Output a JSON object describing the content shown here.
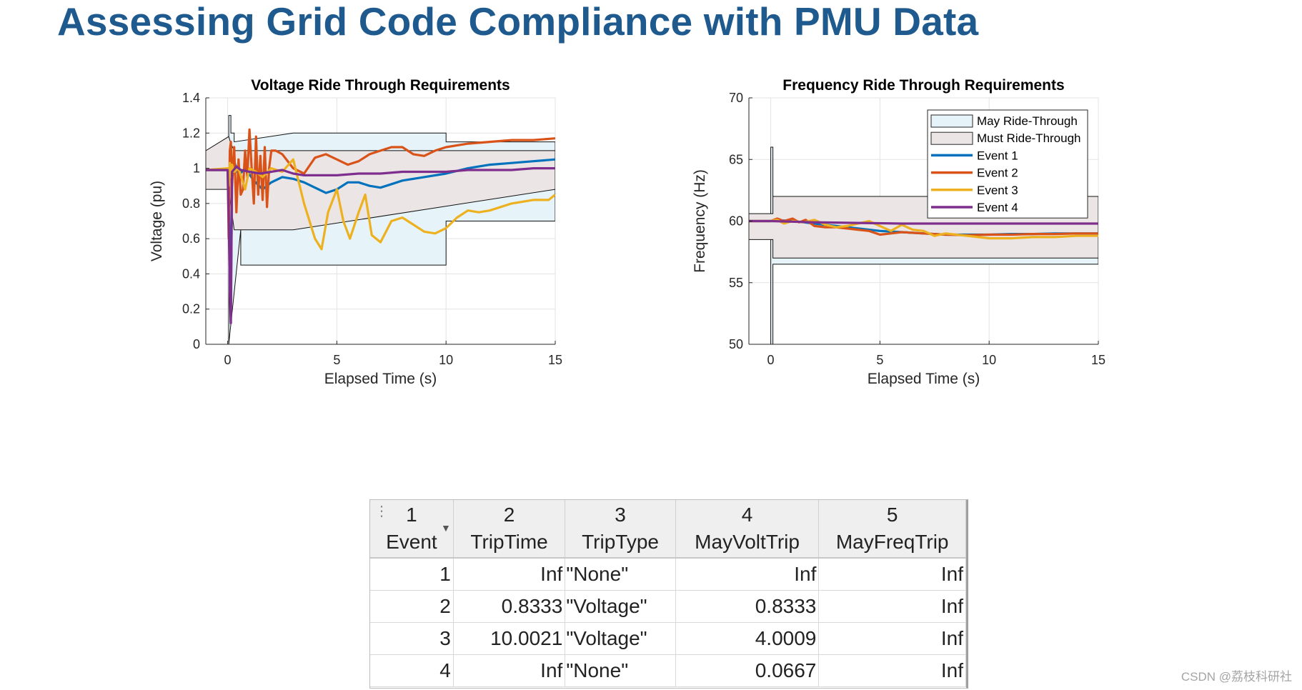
{
  "page": {
    "title": "Assessing Grid Code Compliance with PMU Data",
    "watermark": "CSDN @荔枝科研社"
  },
  "chart_data": [
    {
      "id": "voltage",
      "type": "line",
      "title": "Voltage Ride Through Requirements",
      "xlabel": "Elapsed Time (s)",
      "ylabel": "Voltage (pu)",
      "xlim": [
        -1,
        15
      ],
      "ylim": [
        0,
        1.4
      ],
      "xticks": [
        0,
        5,
        10,
        15
      ],
      "xtick_labels": [
        "0",
        "5",
        "10",
        "15"
      ],
      "yticks": [
        0,
        0.2,
        0.4,
        0.6,
        0.8,
        1,
        1.2,
        1.4
      ],
      "ytick_labels": [
        "0",
        "0.2",
        "0.4",
        "0.6",
        "0.8",
        "1",
        "1.2",
        "1.4"
      ],
      "grid": true,
      "regions": [
        {
          "name": "May Ride-Through",
          "color": "#e6f3f8",
          "x": [
            0.05,
            0.05,
            0.15,
            0.15,
            0.3,
            0.3,
            3,
            10,
            10,
            15,
            15,
            10,
            10,
            0.6,
            0.6,
            0.05
          ],
          "y": [
            0,
            1.3,
            1.3,
            1.2,
            1.2,
            1.15,
            1.2,
            1.2,
            1.15,
            1.15,
            0.7,
            0.7,
            0.45,
            0.45,
            0.65,
            0
          ]
        },
        {
          "name": "Must Ride-Through",
          "color": "#ece5e5",
          "x": [
            -1,
            -1,
            0.05,
            0.15,
            0.3,
            0.5,
            15,
            15,
            3,
            0.3,
            0.05
          ],
          "y": [
            0.88,
            1.1,
            1.18,
            1.14,
            1.1,
            1.1,
            1.1,
            0.88,
            0.65,
            0.65,
            0.88
          ]
        }
      ],
      "series": [
        {
          "name": "Event 1",
          "color": "#0072bd",
          "x": [
            -1,
            0,
            0.05,
            0.1,
            0.15,
            0.2,
            0.3,
            0.5,
            0.8,
            1.2,
            1.6,
            2,
            2.5,
            3,
            3.5,
            4,
            4.5,
            5,
            5.5,
            6,
            6.5,
            7,
            7.5,
            8,
            9,
            10,
            11,
            12,
            13,
            14,
            15
          ],
          "y": [
            0.99,
            0.99,
            0.85,
            0.5,
            0.25,
            0.95,
            1.04,
            0.96,
            1.0,
            0.93,
            0.88,
            0.92,
            0.95,
            0.94,
            0.92,
            0.89,
            0.86,
            0.88,
            0.92,
            0.92,
            0.9,
            0.89,
            0.91,
            0.93,
            0.95,
            0.97,
            1.0,
            1.02,
            1.03,
            1.04,
            1.05
          ]
        },
        {
          "name": "Event 2",
          "color": "#d95319",
          "x": [
            -1,
            0,
            0.05,
            0.1,
            0.15,
            0.2,
            0.3,
            0.4,
            0.5,
            0.6,
            0.7,
            0.8,
            0.9,
            1.0,
            1.1,
            1.2,
            1.3,
            1.4,
            1.5,
            1.6,
            1.7,
            1.8,
            1.9,
            2.0,
            2.2,
            2.5,
            3,
            3.5,
            4,
            4.5,
            5,
            5.5,
            6,
            6.5,
            7,
            7.5,
            8,
            8.5,
            9,
            9.5,
            10,
            11,
            12,
            13,
            14,
            15
          ],
          "y": [
            0.99,
            0.99,
            0.6,
            1.1,
            1.15,
            0.9,
            1.12,
            0.75,
            1.05,
            0.85,
            0.88,
            1.1,
            0.95,
            1.22,
            1.0,
            0.8,
            1.18,
            0.85,
            1.07,
            0.82,
            1.12,
            0.78,
            1.0,
            1.1,
            1.1,
            1.08,
            1.0,
            0.97,
            1.06,
            1.08,
            1.05,
            1.02,
            1.04,
            1.08,
            1.1,
            1.12,
            1.12,
            1.08,
            1.07,
            1.1,
            1.12,
            1.14,
            1.15,
            1.16,
            1.16,
            1.17
          ]
        },
        {
          "name": "Event 3",
          "color": "#edb120",
          "x": [
            -1,
            0,
            0.05,
            0.1,
            0.15,
            0.2,
            0.3,
            0.5,
            0.8,
            1.0,
            1.3,
            1.6,
            2,
            2.5,
            3,
            3.5,
            4,
            4.3,
            4.6,
            5,
            5.3,
            5.6,
            6,
            6.3,
            6.6,
            7,
            7.5,
            8,
            8.5,
            9,
            9.5,
            10,
            10.5,
            11,
            11.5,
            12,
            12.5,
            13,
            13.5,
            14,
            14.7,
            15
          ],
          "y": [
            0.99,
            1.0,
            0.9,
            1.03,
            0.95,
            1.02,
            0.98,
            1.0,
            0.88,
            1.0,
            0.98,
            0.95,
            1.0,
            0.98,
            1.05,
            0.8,
            0.6,
            0.54,
            0.75,
            0.88,
            0.7,
            0.6,
            0.75,
            0.85,
            0.62,
            0.58,
            0.7,
            0.72,
            0.68,
            0.64,
            0.63,
            0.66,
            0.72,
            0.76,
            0.75,
            0.76,
            0.78,
            0.8,
            0.81,
            0.82,
            0.82,
            0.85
          ]
        },
        {
          "name": "Event 4",
          "color": "#7e2f8e",
          "x": [
            -1,
            0,
            0.05,
            0.1,
            0.15,
            0.2,
            0.4,
            0.6,
            1,
            1.5,
            2,
            2.5,
            3,
            3.5,
            4,
            5,
            6,
            7,
            8,
            9,
            10,
            11,
            12,
            13,
            14,
            15
          ],
          "y": [
            0.99,
            0.99,
            0.7,
            0.3,
            0.12,
            0.98,
            1.01,
            0.99,
            0.98,
            0.97,
            0.98,
            0.99,
            0.97,
            0.96,
            0.96,
            0.96,
            0.97,
            0.97,
            0.98,
            0.98,
            0.98,
            0.99,
            0.99,
            0.99,
            1.0,
            1.0
          ]
        }
      ]
    },
    {
      "id": "frequency",
      "type": "line",
      "title": "Frequency Ride Through Requirements",
      "xlabel": "Elapsed Time (s)",
      "ylabel": "Frequency (Hz)",
      "xlim": [
        -1,
        15
      ],
      "ylim": [
        50,
        70
      ],
      "xticks": [
        0,
        5,
        10,
        15
      ],
      "xtick_labels": [
        "0",
        "5",
        "10",
        "15"
      ],
      "yticks": [
        50,
        55,
        60,
        65,
        70
      ],
      "ytick_labels": [
        "50",
        "55",
        "60",
        "65",
        "70"
      ],
      "grid": true,
      "legend": "top-right",
      "regions": [
        {
          "name": "May Ride-Through",
          "color": "#e6f3f8",
          "x": [
            0,
            0,
            0.1,
            0.1,
            15,
            15,
            0.1,
            0.1,
            0
          ],
          "y": [
            58.5,
            66,
            66,
            62,
            62,
            56.5,
            56.5,
            50,
            50
          ]
        },
        {
          "name": "Must Ride-Through",
          "color": "#ece5e5",
          "x": [
            -1,
            -1,
            0.1,
            0.1,
            15,
            15,
            0.1,
            0.1,
            -1
          ],
          "y": [
            58.5,
            60.6,
            60.6,
            62,
            62,
            57,
            57,
            58.5,
            58.5
          ]
        }
      ],
      "series": [
        {
          "name": "Event 1",
          "color": "#0072bd",
          "x": [
            -1,
            0,
            0.5,
            1,
            1.5,
            2,
            3,
            4,
            5,
            6,
            7,
            8,
            9,
            10,
            11,
            12,
            13,
            14,
            15
          ],
          "y": [
            60,
            60,
            60.05,
            60.0,
            59.9,
            59.8,
            59.6,
            59.4,
            59.2,
            59.1,
            59.0,
            58.9,
            58.9,
            58.9,
            58.95,
            58.95,
            59.0,
            59.0,
            59.0
          ]
        },
        {
          "name": "Event 2",
          "color": "#d95319",
          "x": [
            -1,
            0,
            0.3,
            0.6,
            1,
            1.3,
            1.6,
            2,
            2.5,
            3,
            3.5,
            4,
            4.5,
            5,
            5.5,
            6,
            7,
            8,
            9,
            10,
            11,
            12,
            13,
            14,
            15
          ],
          "y": [
            60,
            60,
            60.2,
            60.0,
            60.2,
            59.9,
            60.1,
            59.6,
            59.5,
            59.5,
            59.4,
            59.3,
            59.2,
            58.9,
            59.0,
            59.1,
            59.0,
            58.9,
            58.85,
            58.9,
            58.9,
            58.95,
            58.95,
            59.0,
            59.0
          ]
        },
        {
          "name": "Event 3",
          "color": "#edb120",
          "x": [
            -1,
            0,
            0.3,
            0.6,
            1,
            1.5,
            2,
            2.5,
            3,
            3.5,
            4,
            4.5,
            5,
            5.5,
            6,
            6.5,
            7,
            7.5,
            8,
            9,
            10,
            11,
            12,
            13,
            14,
            15
          ],
          "y": [
            60,
            60,
            60.1,
            59.8,
            60.0,
            59.9,
            60.1,
            59.7,
            59.5,
            59.6,
            59.8,
            60.0,
            59.6,
            59.2,
            59.7,
            59.3,
            59.2,
            58.8,
            59.0,
            58.8,
            58.6,
            58.6,
            58.7,
            58.7,
            58.8,
            58.8
          ]
        },
        {
          "name": "Event 4",
          "color": "#7e2f8e",
          "x": [
            -1,
            0,
            2,
            4,
            6,
            8,
            10,
            12,
            14,
            15
          ],
          "y": [
            60,
            60,
            59.9,
            59.85,
            59.8,
            59.8,
            59.8,
            59.8,
            59.8,
            59.8
          ]
        }
      ]
    }
  ],
  "table": {
    "columns": [
      {
        "index": "1",
        "name": "Event"
      },
      {
        "index": "2",
        "name": "TripTime"
      },
      {
        "index": "3",
        "name": "TripType"
      },
      {
        "index": "4",
        "name": "MayVoltTrip"
      },
      {
        "index": "5",
        "name": "MayFreqTrip"
      }
    ],
    "rows": [
      [
        "1",
        "Inf",
        "\"None\"",
        "Inf",
        "Inf"
      ],
      [
        "2",
        "0.8333",
        "\"Voltage\"",
        "0.8333",
        "Inf"
      ],
      [
        "3",
        "10.0021",
        "\"Voltage\"",
        "4.0009",
        "Inf"
      ],
      [
        "4",
        "Inf",
        "\"None\"",
        "0.0667",
        "Inf"
      ]
    ]
  }
}
